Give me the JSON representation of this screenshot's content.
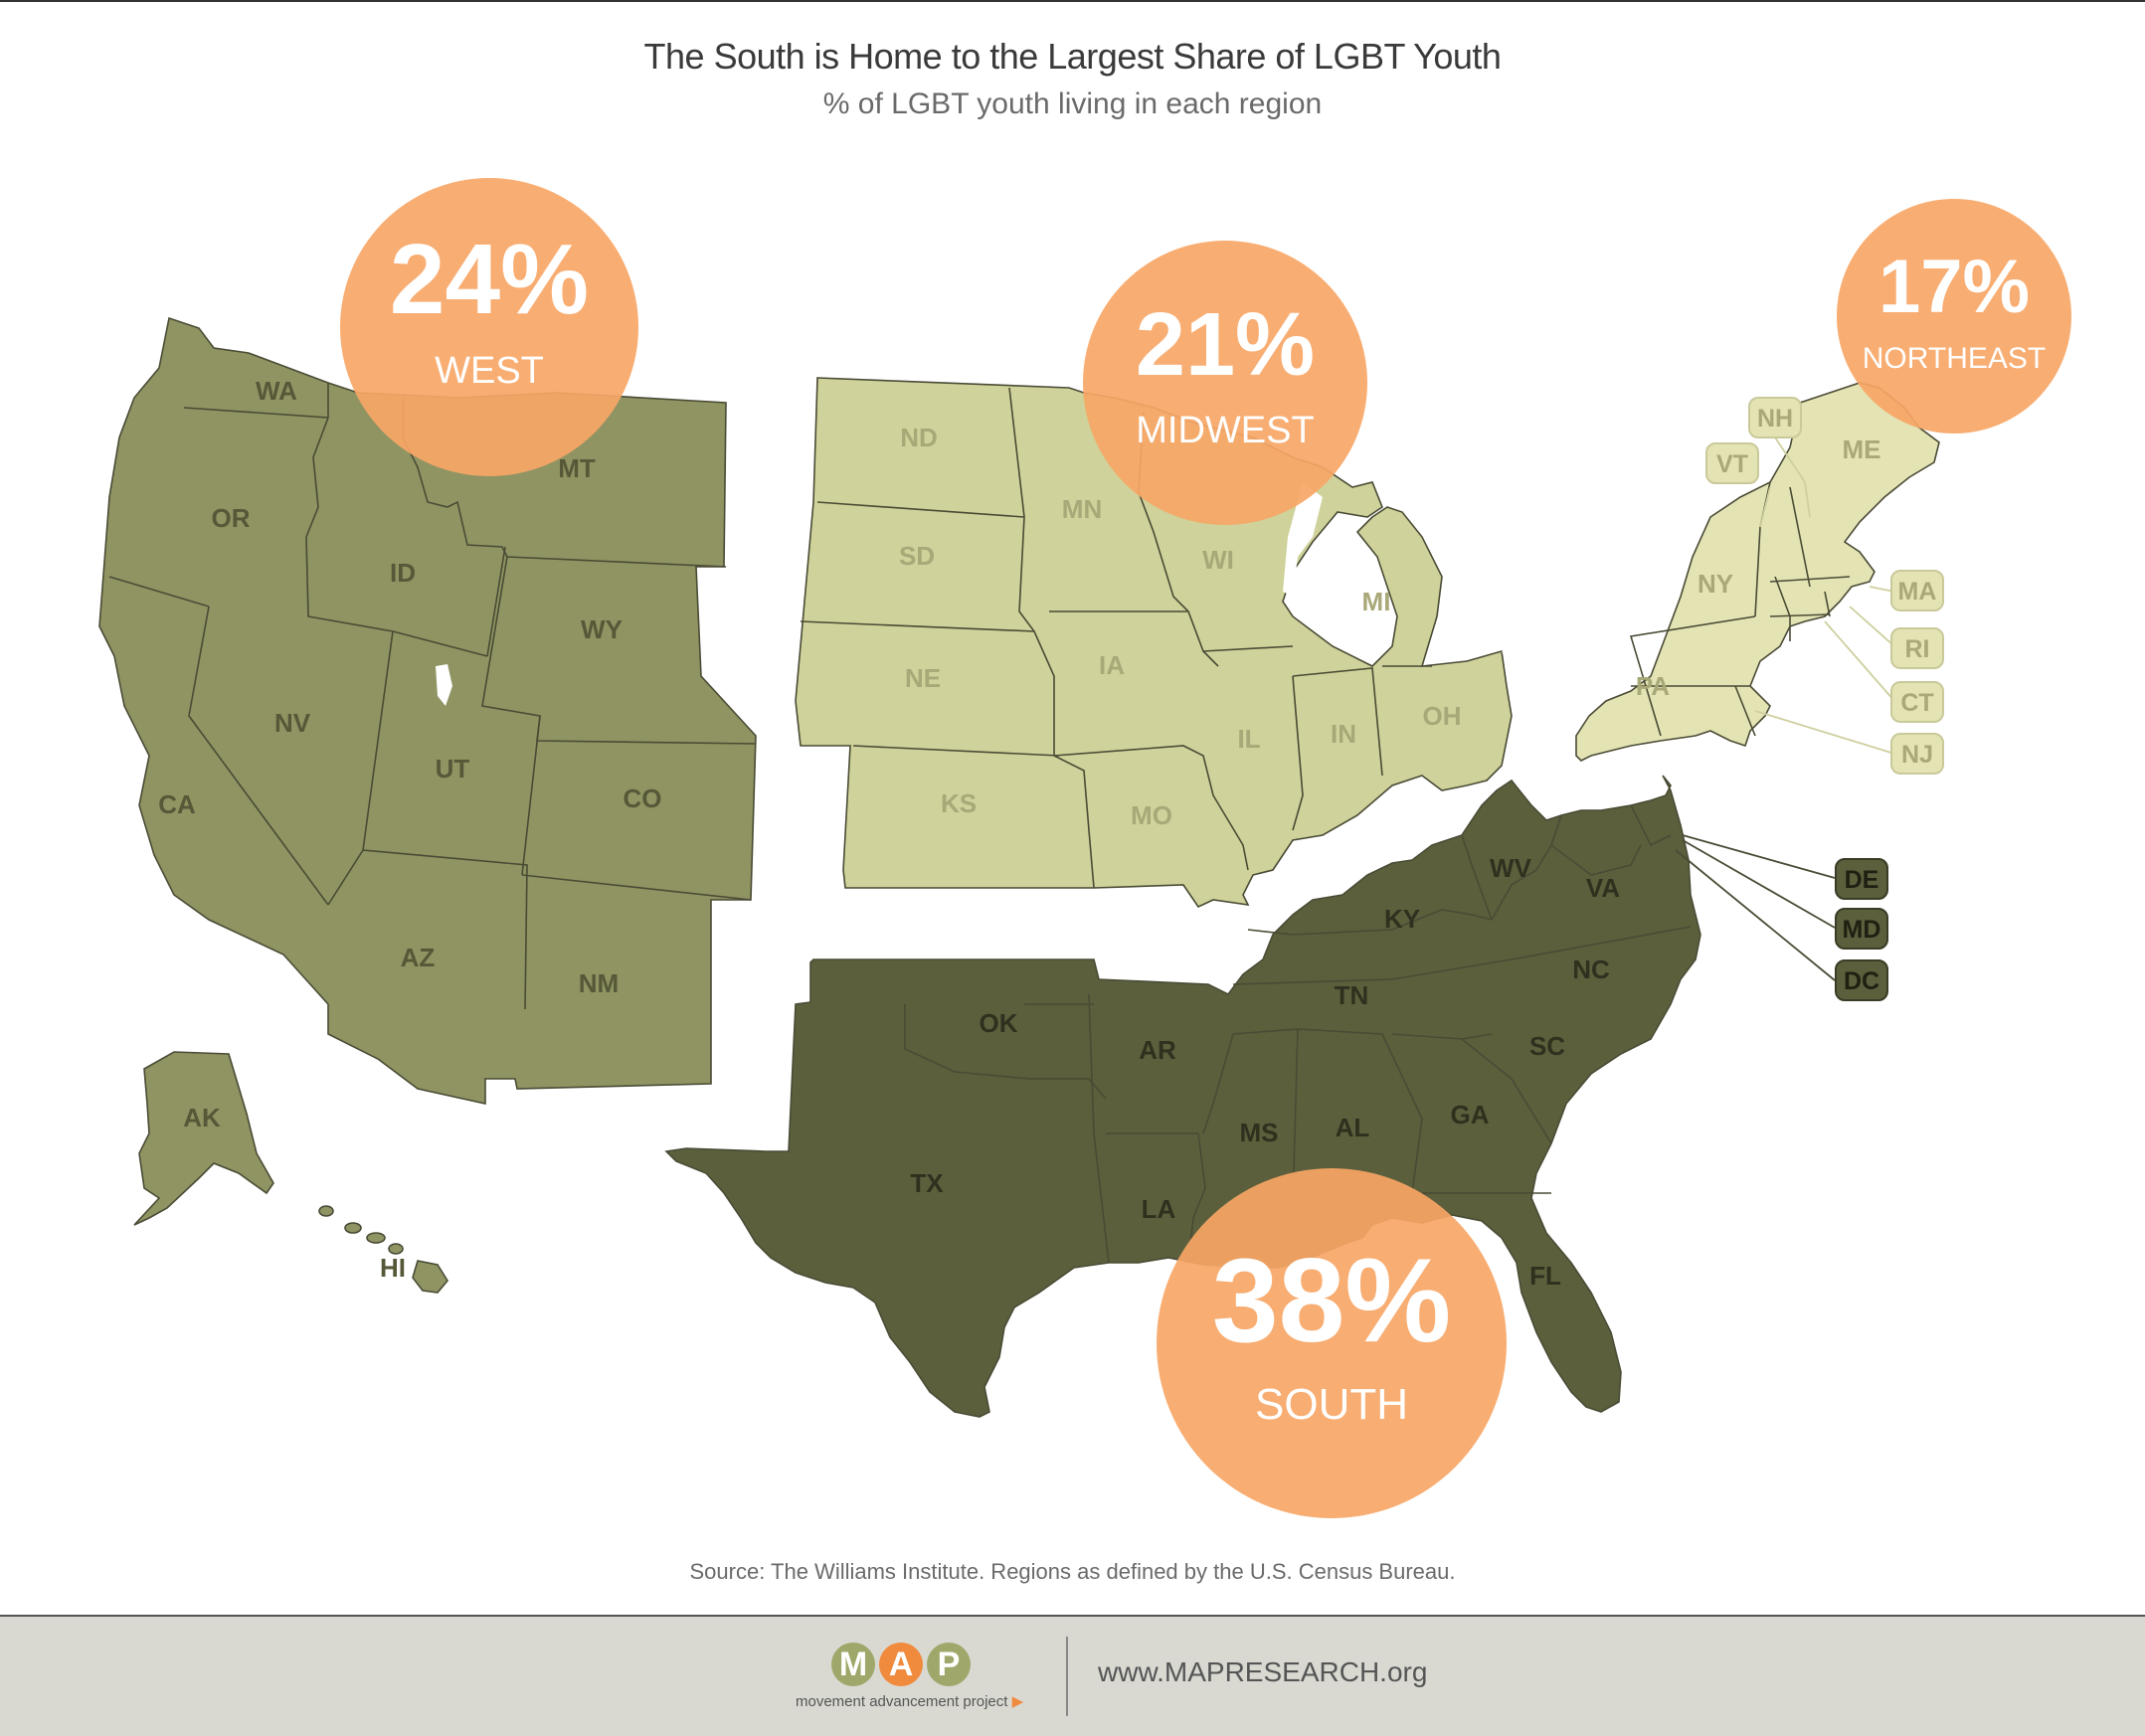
{
  "header": {
    "title": "The South is Home to the Largest Share of LGBT Youth",
    "subtitle": "% of LGBT youth living in each region"
  },
  "colors": {
    "west": "#8f9462",
    "midwest": "#cfd29a",
    "northeast": "#e3e3b4",
    "south": "#5b5f3c",
    "bubble": "#f7a666",
    "state_border": "#4a4b35"
  },
  "regions": [
    {
      "id": "west",
      "label": "WEST",
      "value": "24%"
    },
    {
      "id": "midwest",
      "label": "MIDWEST",
      "value": "21%"
    },
    {
      "id": "northeast",
      "label": "NORTHEAST",
      "value": "17%"
    },
    {
      "id": "south",
      "label": "SOUTH",
      "value": "38%"
    }
  ],
  "state_labels": [
    {
      "abbr": "WA",
      "region": "west"
    },
    {
      "abbr": "OR",
      "region": "west"
    },
    {
      "abbr": "CA",
      "region": "west"
    },
    {
      "abbr": "ID",
      "region": "west"
    },
    {
      "abbr": "MT",
      "region": "west"
    },
    {
      "abbr": "WY",
      "region": "west"
    },
    {
      "abbr": "NV",
      "region": "west"
    },
    {
      "abbr": "UT",
      "region": "west"
    },
    {
      "abbr": "CO",
      "region": "west"
    },
    {
      "abbr": "AZ",
      "region": "west"
    },
    {
      "abbr": "NM",
      "region": "west"
    },
    {
      "abbr": "AK",
      "region": "west"
    },
    {
      "abbr": "HI",
      "region": "west"
    },
    {
      "abbr": "ND",
      "region": "midwest"
    },
    {
      "abbr": "SD",
      "region": "midwest"
    },
    {
      "abbr": "NE",
      "region": "midwest"
    },
    {
      "abbr": "KS",
      "region": "midwest"
    },
    {
      "abbr": "MN",
      "region": "midwest"
    },
    {
      "abbr": "IA",
      "region": "midwest"
    },
    {
      "abbr": "MO",
      "region": "midwest"
    },
    {
      "abbr": "WI",
      "region": "midwest"
    },
    {
      "abbr": "IL",
      "region": "midwest"
    },
    {
      "abbr": "MI",
      "region": "midwest"
    },
    {
      "abbr": "IN",
      "region": "midwest"
    },
    {
      "abbr": "OH",
      "region": "midwest"
    },
    {
      "abbr": "NY",
      "region": "northeast"
    },
    {
      "abbr": "PA",
      "region": "northeast"
    },
    {
      "abbr": "ME",
      "region": "northeast"
    },
    {
      "abbr": "NH",
      "region": "northeast"
    },
    {
      "abbr": "VT",
      "region": "northeast"
    },
    {
      "abbr": "MA",
      "region": "northeast"
    },
    {
      "abbr": "RI",
      "region": "northeast"
    },
    {
      "abbr": "CT",
      "region": "northeast"
    },
    {
      "abbr": "NJ",
      "region": "northeast"
    },
    {
      "abbr": "OK",
      "region": "south"
    },
    {
      "abbr": "TX",
      "region": "south"
    },
    {
      "abbr": "AR",
      "region": "south"
    },
    {
      "abbr": "LA",
      "region": "south"
    },
    {
      "abbr": "MS",
      "region": "south"
    },
    {
      "abbr": "AL",
      "region": "south"
    },
    {
      "abbr": "TN",
      "region": "south"
    },
    {
      "abbr": "KY",
      "region": "south"
    },
    {
      "abbr": "WV",
      "region": "south"
    },
    {
      "abbr": "VA",
      "region": "south"
    },
    {
      "abbr": "NC",
      "region": "south"
    },
    {
      "abbr": "SC",
      "region": "south"
    },
    {
      "abbr": "GA",
      "region": "south"
    },
    {
      "abbr": "FL",
      "region": "south"
    },
    {
      "abbr": "DE",
      "region": "south"
    },
    {
      "abbr": "MD",
      "region": "south"
    },
    {
      "abbr": "DC",
      "region": "south"
    }
  ],
  "source": "Source: The Williams Institute. Regions as defined by the U.S. Census Bureau.",
  "footer": {
    "logo_letters": [
      "M",
      "A",
      "P"
    ],
    "logo_tagline": "movement advancement project",
    "url": "www.MAPRESEARCH.org"
  }
}
